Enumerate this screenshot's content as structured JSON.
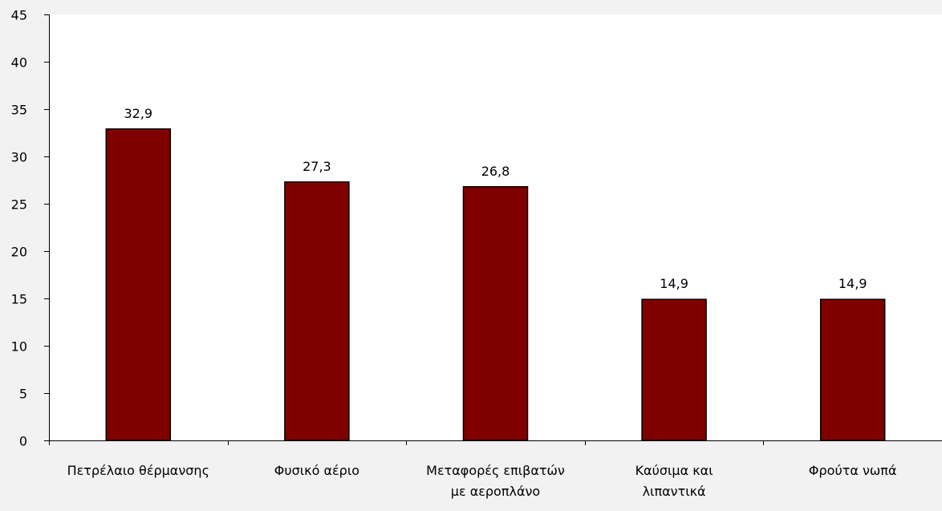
{
  "chart_data": {
    "type": "bar",
    "categories": [
      [
        "Πετρέλαιο θέρμανσης"
      ],
      [
        "Φυσικό αέριο"
      ],
      [
        "Μεταφορές επιβατών",
        "με αεροπλάνο"
      ],
      [
        "Καύσιμα και",
        "λιπαντικά"
      ],
      [
        "Φρούτα νωπά"
      ]
    ],
    "values": [
      32.9,
      27.3,
      26.8,
      14.9,
      14.9
    ],
    "data_labels": [
      "32,9",
      "27,3",
      "26,8",
      "14,9",
      "14,9"
    ],
    "ylim": [
      0,
      45
    ],
    "yticks": [
      0,
      5,
      10,
      15,
      20,
      25,
      30,
      35,
      40,
      45
    ],
    "ytick_labels": [
      "0",
      "5",
      "10",
      "15",
      "20",
      "25",
      "30",
      "35",
      "40",
      "45"
    ],
    "title": "",
    "xlabel": "",
    "ylabel": "",
    "grid": false,
    "legend": "none",
    "colors": {
      "bar": "#800000",
      "bar_edge": "#000000",
      "plot_background": "#ffffff",
      "page_background": "#f2f2f2",
      "axis": "#000000"
    }
  }
}
